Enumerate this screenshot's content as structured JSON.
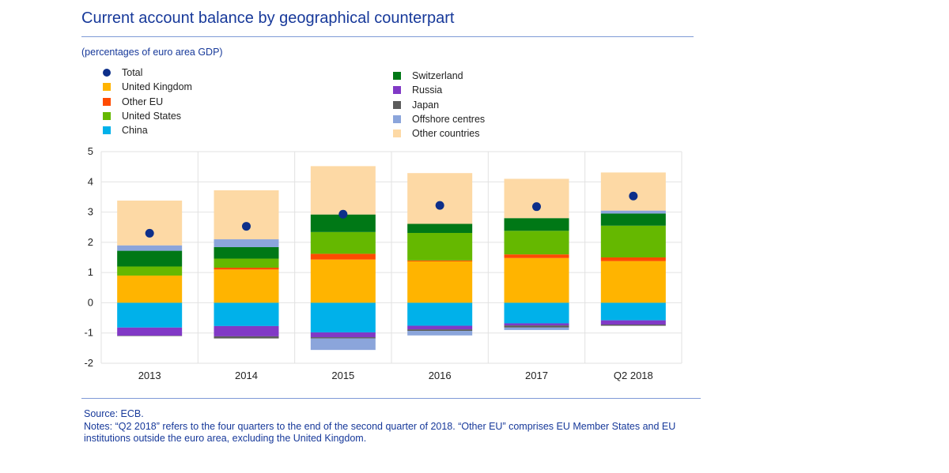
{
  "title": "Current account balance by geographical counterpart",
  "subtitle": "(percentages of euro area GDP)",
  "notes": {
    "source": "Source: ECB.",
    "text": "Notes: “Q2 2018” refers to the four quarters to the end of the second quarter of 2018. “Other EU” comprises EU Member States and EU institutions outside the euro area, excluding the United Kingdom."
  },
  "chart_data": {
    "type": "bar",
    "stacked": true,
    "categories": [
      "2013",
      "2014",
      "2015",
      "2016",
      "2017",
      "Q2 2018"
    ],
    "yticks": [
      "5",
      "4",
      "3",
      "2",
      "1",
      "0",
      "-1",
      "-2"
    ],
    "ylim": [
      -2,
      5
    ],
    "grid": true,
    "legend_position": "top",
    "series": [
      {
        "name": "United Kingdom",
        "color": "#ffb400",
        "values": [
          0.9,
          1.1,
          1.43,
          1.37,
          1.48,
          1.38
        ]
      },
      {
        "name": "Other EU",
        "color": "#ff4b00",
        "values": [
          0.0,
          0.06,
          0.19,
          0.03,
          0.12,
          0.12
        ]
      },
      {
        "name": "United States",
        "color": "#65b800",
        "values": [
          0.3,
          0.3,
          0.72,
          0.91,
          0.78,
          1.05
        ]
      },
      {
        "name": "Switzerland",
        "color": "#007816",
        "values": [
          0.52,
          0.38,
          0.58,
          0.3,
          0.42,
          0.4
        ]
      },
      {
        "name": "Offshore centres",
        "color": "#8ba5db",
        "values": [
          0.18,
          0.26,
          0.0,
          0.0,
          0.0,
          0.1
        ]
      },
      {
        "name": "Other countries",
        "color": "#fdd9a5",
        "values": [
          1.48,
          1.62,
          1.6,
          1.68,
          1.3,
          1.26
        ]
      },
      {
        "name": "China",
        "color": "#00b1ea",
        "values": [
          -0.82,
          -0.77,
          -0.98,
          -0.76,
          -0.68,
          -0.58
        ]
      },
      {
        "name": "Russia",
        "color": "#8139c6",
        "values": [
          -0.27,
          -0.34,
          -0.16,
          -0.12,
          -0.07,
          -0.14
        ]
      },
      {
        "name": "Japan",
        "color": "#5c5c5c",
        "values": [
          -0.01,
          -0.07,
          -0.04,
          -0.05,
          -0.07,
          -0.04
        ]
      },
      {
        "name": "Offshore centres (neg)",
        "color": "#8ba5db",
        "values": [
          0.0,
          0.0,
          -0.38,
          -0.15,
          -0.08,
          0.0
        ]
      }
    ],
    "total": {
      "name": "Total",
      "color": "#0d2f8a",
      "values": [
        2.3,
        2.53,
        2.93,
        3.22,
        3.18,
        3.53
      ]
    }
  },
  "legend": {
    "left": [
      {
        "name": "Total",
        "color": "#0d2f8a",
        "marker": "dot"
      },
      {
        "name": "United Kingdom",
        "color": "#ffb400",
        "marker": "square"
      },
      {
        "name": "Other EU",
        "color": "#ff4b00",
        "marker": "square"
      },
      {
        "name": "United States",
        "color": "#65b800",
        "marker": "square"
      },
      {
        "name": "China",
        "color": "#00b1ea",
        "marker": "square"
      }
    ],
    "right": [
      {
        "name": "Switzerland",
        "color": "#007816",
        "marker": "square"
      },
      {
        "name": "Russia",
        "color": "#8139c6",
        "marker": "square"
      },
      {
        "name": "Japan",
        "color": "#5c5c5c",
        "marker": "square"
      },
      {
        "name": "Offshore centres",
        "color": "#8ba5db",
        "marker": "square"
      },
      {
        "name": "Other countries",
        "color": "#fdd9a5",
        "marker": "square"
      }
    ]
  }
}
